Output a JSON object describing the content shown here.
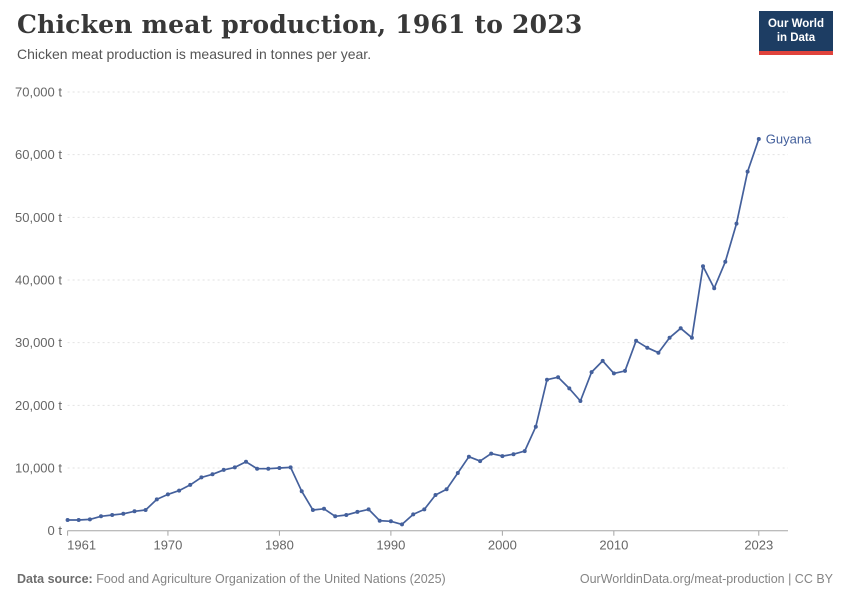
{
  "header": {
    "title": "Chicken meat production, 1961 to 2023",
    "subtitle": "Chicken meat production is measured in tonnes per year."
  },
  "logo": {
    "line1": "Our World",
    "line2": "in Data",
    "bg_color": "#1d3d63",
    "accent_color": "#e0433c"
  },
  "footer": {
    "source_label": "Data source:",
    "source_text": " Food and Agriculture Organization of the United Nations (2025)",
    "link_text": "OurWorldinData.org/meat-production | CC BY"
  },
  "chart_data": {
    "type": "line",
    "title": "Chicken meat production, 1961 to 2023",
    "ylabel": "tonnes per year",
    "xlabel": "",
    "ylim": [
      0,
      70000
    ],
    "grid": "horizontal-dashed",
    "legend_position": "end-of-line-label",
    "yticks": [
      0,
      10000,
      20000,
      30000,
      40000,
      50000,
      60000,
      70000
    ],
    "ytick_labels": [
      "0 t",
      "10,000 t",
      "20,000 t",
      "30,000 t",
      "40,000 t",
      "50,000 t",
      "60,000 t",
      "70,000 t"
    ],
    "xticks": [
      1961,
      1970,
      1980,
      1990,
      2000,
      2010,
      2023
    ],
    "series": [
      {
        "name": "Guyana",
        "color": "#44609c",
        "x": [
          1961,
          1962,
          1963,
          1964,
          1965,
          1966,
          1967,
          1968,
          1969,
          1970,
          1971,
          1972,
          1973,
          1974,
          1975,
          1976,
          1977,
          1978,
          1979,
          1980,
          1981,
          1982,
          1983,
          1984,
          1985,
          1986,
          1987,
          1988,
          1989,
          1990,
          1991,
          1992,
          1993,
          1994,
          1995,
          1996,
          1997,
          1998,
          1999,
          2000,
          2001,
          2002,
          2003,
          2004,
          2005,
          2006,
          2007,
          2008,
          2009,
          2010,
          2011,
          2012,
          2013,
          2014,
          2015,
          2016,
          2017,
          2018,
          2019,
          2020,
          2021,
          2022,
          2023
        ],
        "values": [
          1700,
          1700,
          1800,
          2300,
          2500,
          2700,
          3100,
          3300,
          5000,
          5800,
          6400,
          7300,
          8500,
          9000,
          9700,
          10100,
          11000,
          9900,
          9900,
          10000,
          10100,
          6300,
          3300,
          3500,
          2300,
          2500,
          3000,
          3400,
          1600,
          1500,
          1000,
          2600,
          3400,
          5700,
          6600,
          9200,
          11800,
          11100,
          12300,
          11900,
          12200,
          12700,
          16600,
          24100,
          24500,
          22700,
          20700,
          25300,
          27100,
          25100,
          25500,
          30300,
          29200,
          28400,
          30800,
          32300,
          30800,
          42200,
          38700,
          42900,
          49000,
          57300,
          62500
        ]
      }
    ]
  }
}
